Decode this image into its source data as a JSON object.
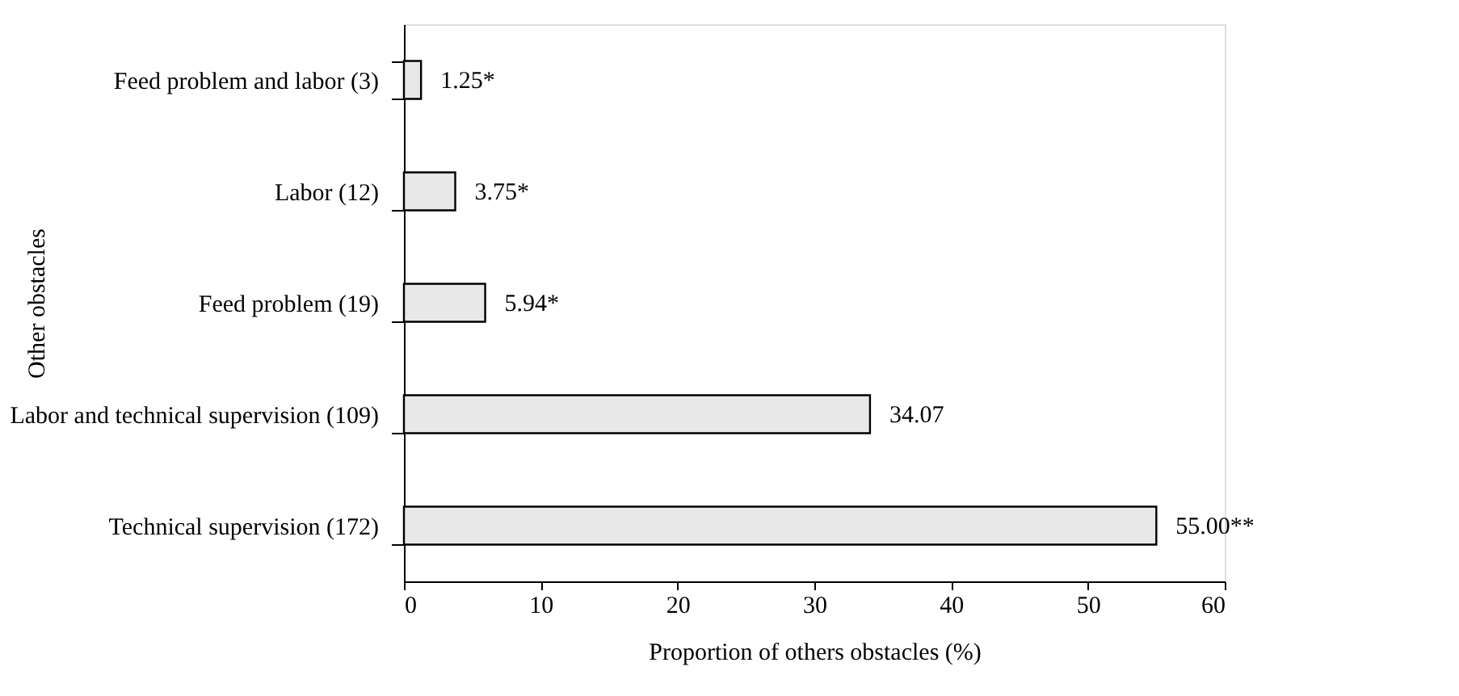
{
  "chart_data": {
    "type": "bar",
    "orientation": "horizontal",
    "xlabel": "Proportion of others obstacles (%)",
    "ylabel": "Other obstacles",
    "categories": [
      "Feed problem and labor (3)",
      "Labor (12)",
      "Feed problem (19)",
      "Labor and technical supervision (109)",
      "Technical supervision (172)"
    ],
    "values": [
      1.25,
      3.75,
      5.94,
      34.07,
      55.0
    ],
    "value_labels": [
      "1.25*",
      "3.75*",
      "5.94*",
      "34.07",
      "55.00**"
    ],
    "color": "#e8e8e8",
    "xlim": [
      0,
      60
    ],
    "xticks": [
      0,
      10,
      20,
      30,
      40,
      50,
      60
    ],
    "grid": false
  }
}
